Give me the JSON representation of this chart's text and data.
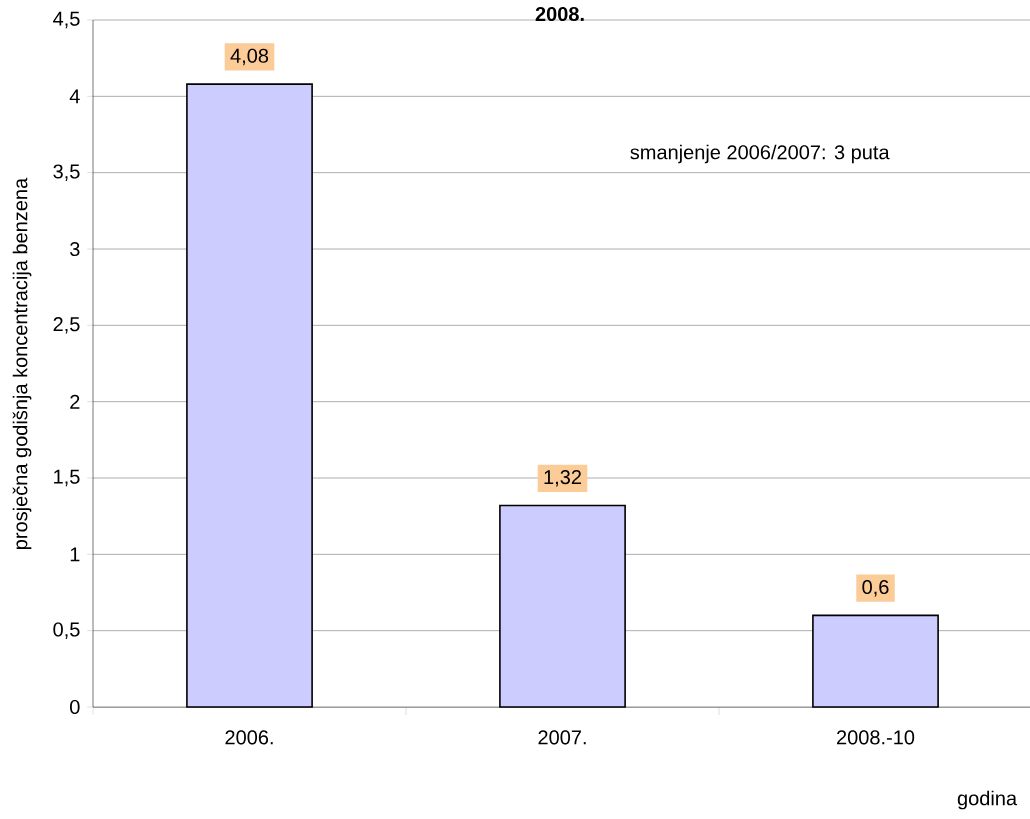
{
  "chart_data": {
    "type": "bar",
    "title": "2008.",
    "xlabel": "godina",
    "ylabel": "prosječna godišnja koncentracija benzena",
    "categories": [
      "2006.",
      "2007.",
      "2008.-10"
    ],
    "values": [
      4.08,
      1.32,
      0.6
    ],
    "color": "#ccccff",
    "value_labels": [
      "4,08",
      "1,32",
      "0,6"
    ],
    "ylim": [
      0,
      4.5
    ],
    "yticks": [
      {
        "value": 0,
        "label": "0"
      },
      {
        "value": 0.5,
        "label": "0,5"
      },
      {
        "value": 1,
        "label": "1"
      },
      {
        "value": 1.5,
        "label": "1,5"
      },
      {
        "value": 2,
        "label": "2"
      },
      {
        "value": 2.5,
        "label": "2,5"
      },
      {
        "value": 3,
        "label": "3"
      },
      {
        "value": 3.5,
        "label": "3,5"
      },
      {
        "value": 4,
        "label": "4"
      },
      {
        "value": 4.5,
        "label": "4,5"
      }
    ],
    "grid": "y",
    "annotations": [
      "smanjenje 2006/2007: 3 puta"
    ]
  }
}
